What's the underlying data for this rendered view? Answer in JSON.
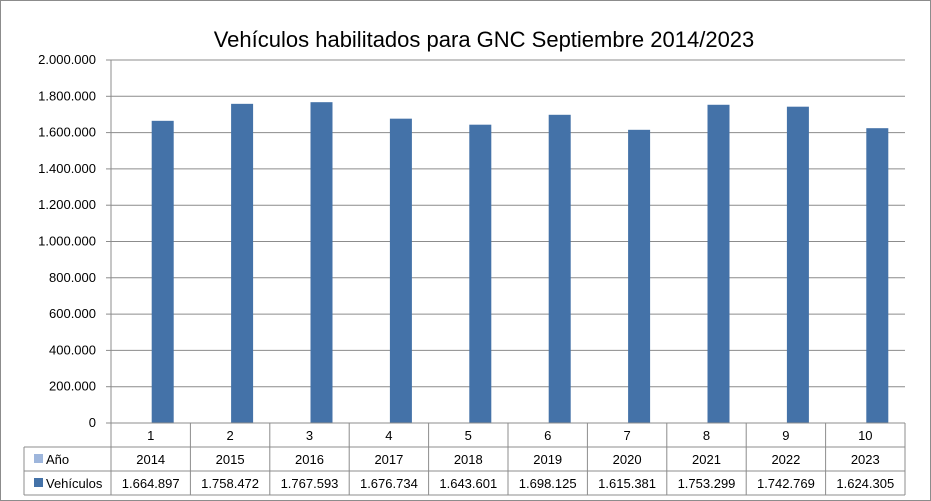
{
  "chart_data": {
    "type": "bar",
    "title": "Vehículos habilitados para GNC Septiembre 2014/2023",
    "categories": [
      "1",
      "2",
      "3",
      "4",
      "5",
      "6",
      "7",
      "8",
      "9",
      "10"
    ],
    "ylim": [
      0,
      2000000
    ],
    "yticks": [
      "0",
      "200.000",
      "400.000",
      "600.000",
      "800.000",
      "1.000.000",
      "1.200.000",
      "1.400.000",
      "1.600.000",
      "1.800.000",
      "2.000.000"
    ],
    "grid": true,
    "series": [
      {
        "name": "Año",
        "color": "#9eb6dc",
        "values": [
          2014,
          2015,
          2016,
          2017,
          2018,
          2019,
          2020,
          2021,
          2022,
          2023
        ],
        "labels": [
          "2014",
          "2015",
          "2016",
          "2017",
          "2018",
          "2019",
          "2020",
          "2021",
          "2022",
          "2023"
        ]
      },
      {
        "name": "Vehículos",
        "color": "#4472a8",
        "values": [
          1664897,
          1758472,
          1767593,
          1676734,
          1643601,
          1698125,
          1615381,
          1753299,
          1742769,
          1624305
        ],
        "labels": [
          "1.664.897",
          "1.758.472",
          "1.767.593",
          "1.676.734",
          "1.643.601",
          "1.698.125",
          "1.615.381",
          "1.753.299",
          "1.742.769",
          "1.624.305"
        ]
      }
    ]
  }
}
